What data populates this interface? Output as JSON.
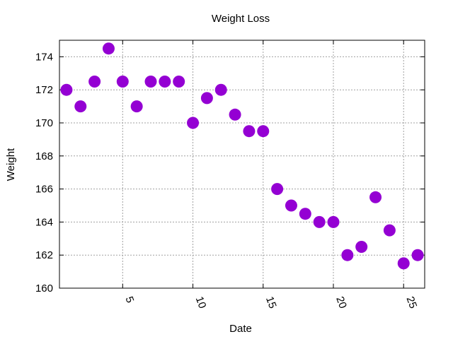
{
  "chart_data": {
    "type": "scatter",
    "title": "Weight Loss",
    "xlabel": "Date",
    "ylabel": "Weight",
    "xlim": [
      0.5,
      26.5
    ],
    "ylim": [
      160,
      175
    ],
    "xticks": [
      5,
      10,
      15,
      20,
      25
    ],
    "yticks": [
      160,
      162,
      164,
      166,
      168,
      170,
      172,
      174
    ],
    "grid": true,
    "point_color": "#9400d3",
    "series": [
      {
        "x": [
          1,
          2,
          3,
          4,
          5,
          6,
          7,
          8,
          9,
          10,
          11,
          12,
          13,
          14,
          15,
          16,
          17,
          18,
          19,
          20,
          21,
          22,
          23,
          24,
          25,
          26
        ],
        "y": [
          172,
          171,
          172.5,
          174.5,
          172.5,
          171,
          172.5,
          172.5,
          172.5,
          170,
          171.5,
          172,
          170.5,
          169.5,
          169.5,
          166,
          165,
          164.5,
          164,
          164,
          162,
          162.5,
          165.5,
          163.5,
          161.5,
          162
        ]
      }
    ]
  }
}
